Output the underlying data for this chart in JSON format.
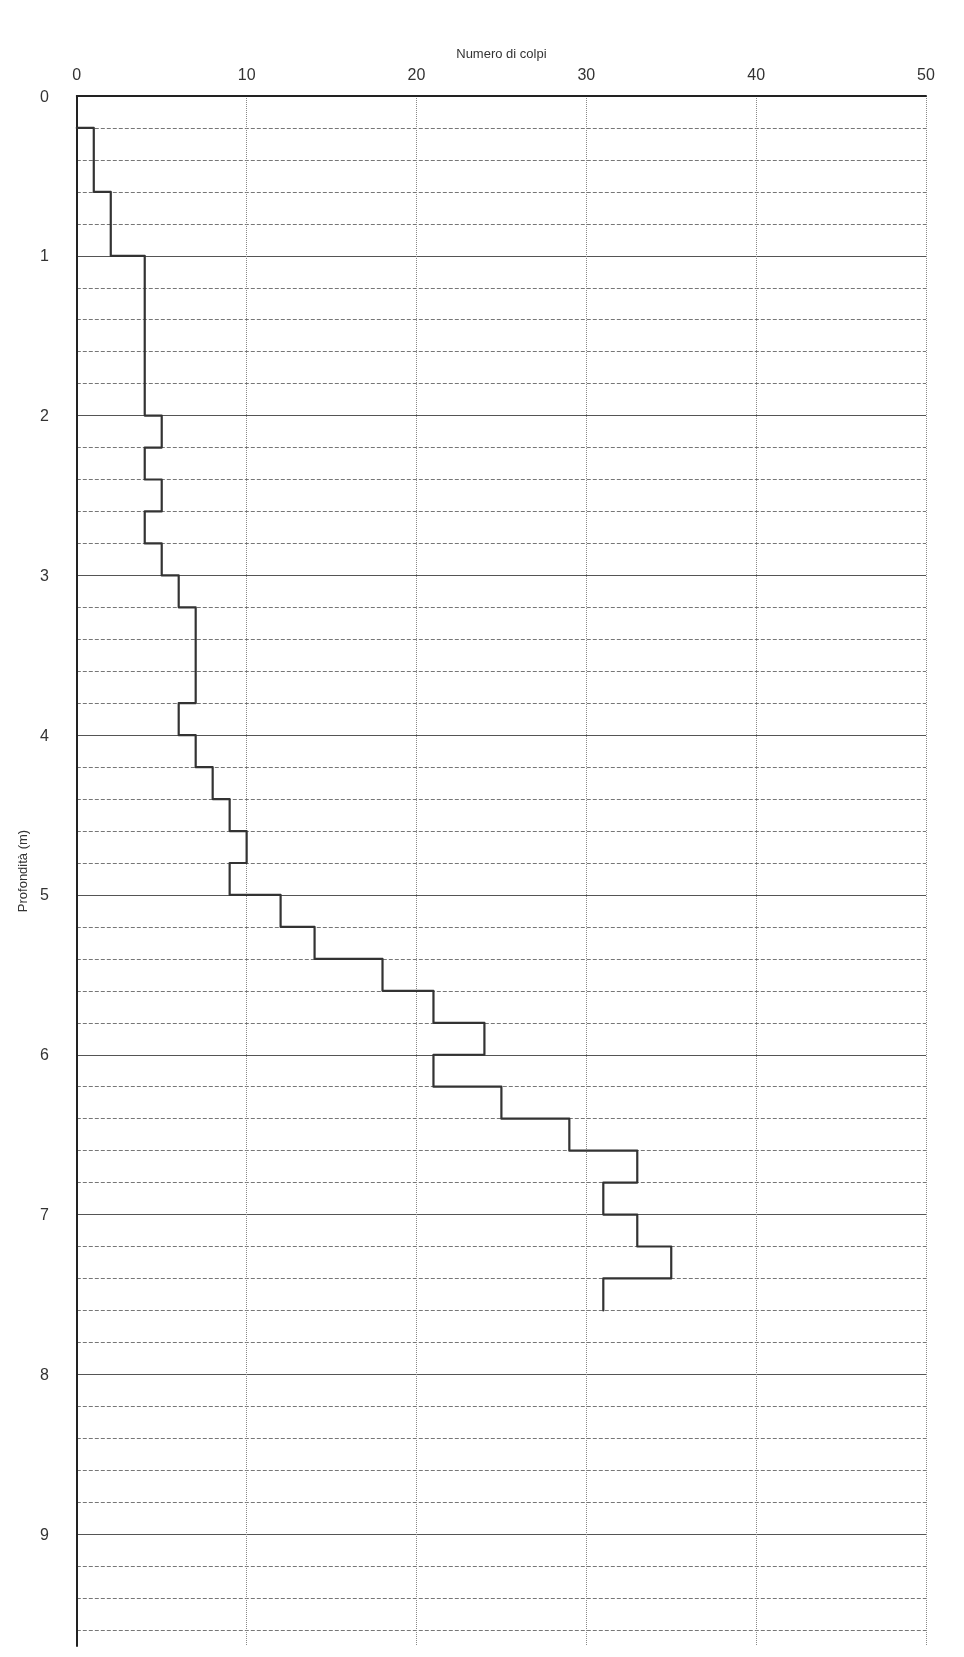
{
  "chart_data": {
    "type": "line",
    "xlabel": "Numero di colpi",
    "ylabel": "Profondità (m)",
    "xlim": [
      0,
      50
    ],
    "xticks": [
      0,
      10,
      20,
      30,
      40,
      50
    ],
    "ylim": [
      9.7,
      0
    ],
    "yticks": [
      0,
      1,
      2,
      3,
      4,
      5,
      6,
      7,
      8,
      9
    ],
    "grid": true,
    "marker": "none",
    "line_style": "solid",
    "series": [
      {
        "color": "#333333",
        "x": [
          0,
          1,
          1,
          2,
          2,
          4,
          4,
          5,
          5,
          4,
          4,
          5,
          5,
          4,
          4,
          5,
          5,
          6,
          6,
          7,
          7,
          6,
          6,
          7,
          7,
          8,
          8,
          9,
          9,
          10,
          10,
          9,
          9,
          12,
          12,
          14,
          14,
          18,
          18,
          21,
          21,
          24,
          24,
          21,
          21,
          25,
          25,
          29,
          29,
          33,
          33,
          31,
          31,
          33,
          33,
          35,
          35,
          31,
          31
        ],
        "values": [
          0.2,
          0.2,
          0.6,
          0.6,
          1.0,
          1.0,
          2.0,
          2.0,
          2.2,
          2.2,
          2.4,
          2.4,
          2.6,
          2.6,
          2.8,
          2.8,
          3.0,
          3.0,
          3.2,
          3.2,
          3.8,
          3.8,
          4.0,
          4.0,
          4.2,
          4.2,
          4.4,
          4.4,
          4.6,
          4.6,
          4.8,
          4.8,
          5.0,
          5.0,
          5.2,
          5.2,
          5.4,
          5.4,
          5.6,
          5.6,
          5.8,
          5.8,
          6.0,
          6.0,
          6.2,
          6.2,
          6.4,
          6.4,
          6.6,
          6.6,
          6.8,
          6.8,
          7.0,
          7.0,
          7.2,
          7.2,
          7.4,
          7.4,
          7.6
        ]
      }
    ]
  }
}
